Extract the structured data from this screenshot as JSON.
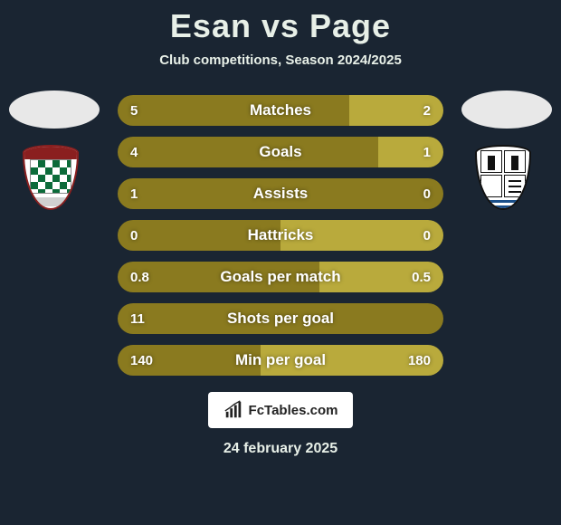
{
  "header": {
    "title": "Esan vs Page",
    "subtitle": "Club competitions, Season 2024/2025"
  },
  "colors": {
    "background": "#1a2532",
    "left_bar": "#8a7a1f",
    "right_bar": "#b9aa3c",
    "text": "#ffffff"
  },
  "bars": [
    {
      "label": "Matches",
      "left": "5",
      "right": "2",
      "left_pct": 71,
      "right_pct": 29
    },
    {
      "label": "Goals",
      "left": "4",
      "right": "1",
      "left_pct": 80,
      "right_pct": 20
    },
    {
      "label": "Assists",
      "left": "1",
      "right": "0",
      "left_pct": 100,
      "right_pct": 0
    },
    {
      "label": "Hattricks",
      "left": "0",
      "right": "0",
      "left_pct": 50,
      "right_pct": 50
    },
    {
      "label": "Goals per match",
      "left": "0.8",
      "right": "0.5",
      "left_pct": 62,
      "right_pct": 38
    },
    {
      "label": "Shots per goal",
      "left": "11",
      "right": "",
      "left_pct": 100,
      "right_pct": 0
    },
    {
      "label": "Min per goal",
      "left": "140",
      "right": "180",
      "left_pct": 44,
      "right_pct": 56
    }
  ],
  "bar_style": {
    "height": 34,
    "gap": 12,
    "radius": 18,
    "label_fontsize": 17,
    "value_fontsize": 15
  },
  "footer": {
    "brand": "FcTables.com",
    "date": "24 february 2025"
  }
}
